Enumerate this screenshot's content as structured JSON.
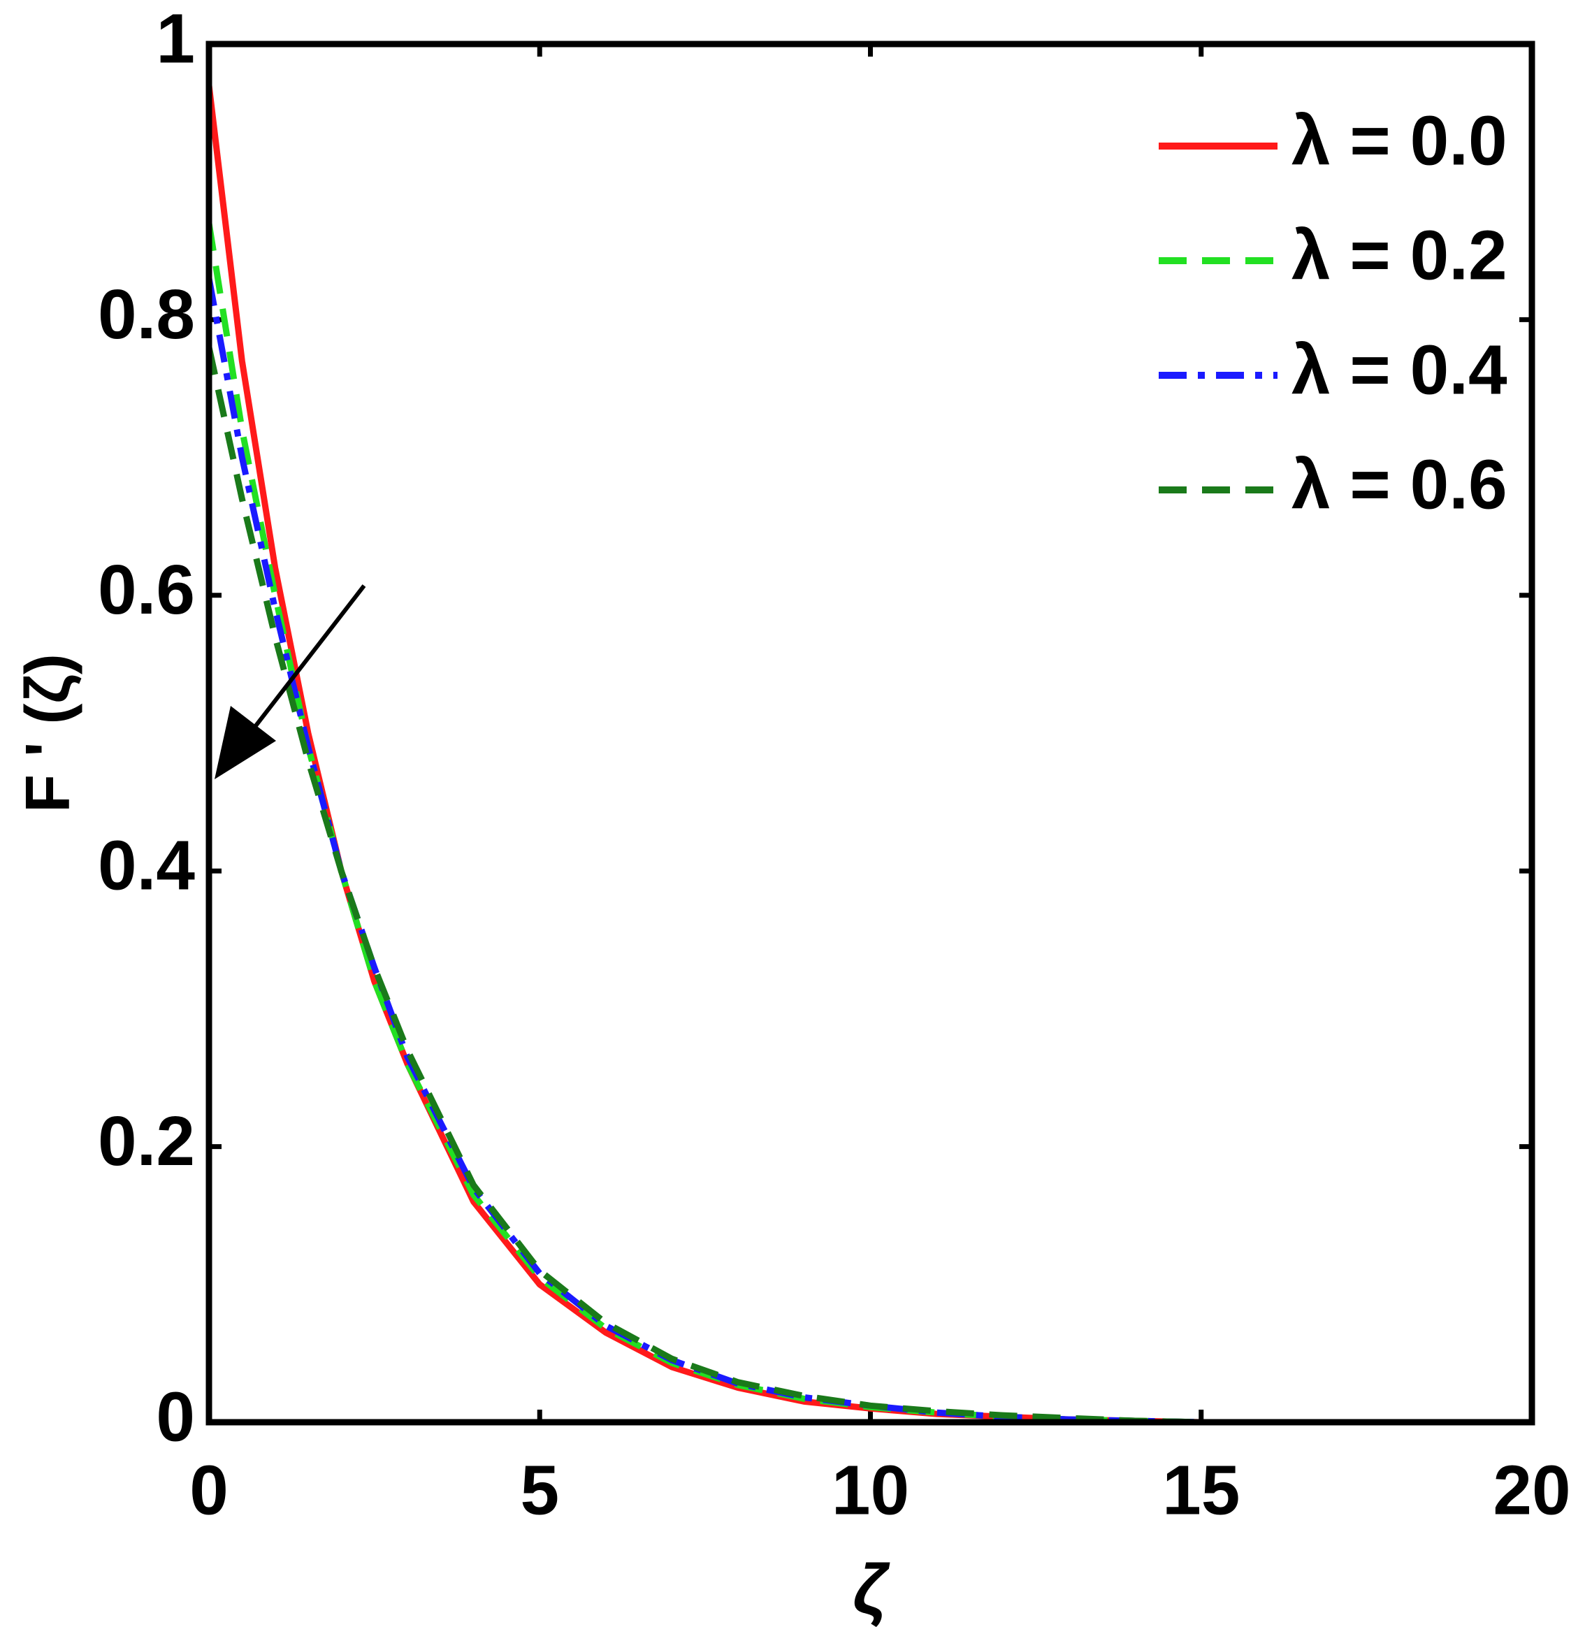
{
  "chart_data": {
    "type": "line",
    "x_label": "ζ",
    "y_label": "F ' (ζ)",
    "x": [
      0,
      0.5,
      1,
      1.5,
      2,
      2.5,
      3,
      4,
      5,
      6,
      7,
      8,
      9,
      10,
      11,
      12,
      13,
      14,
      15,
      16,
      17,
      18,
      19,
      20
    ],
    "series": [
      {
        "name": "λ = 0.0",
        "color": "#ff1a1a",
        "linestyle": "solid",
        "values": [
          0.97,
          0.77,
          0.62,
          0.5,
          0.4,
          0.32,
          0.26,
          0.16,
          0.1,
          0.065,
          0.04,
          0.025,
          0.015,
          0.01,
          0.006,
          0.004,
          0.002,
          0.001,
          0,
          0,
          0,
          0,
          0,
          0
        ]
      },
      {
        "name": "λ = 0.2",
        "color": "#22e022",
        "linestyle": "dashed",
        "values": [
          0.87,
          0.72,
          0.6,
          0.49,
          0.4,
          0.32,
          0.26,
          0.165,
          0.105,
          0.068,
          0.043,
          0.027,
          0.017,
          0.011,
          0.007,
          0.004,
          0.002,
          0.001,
          0,
          0,
          0,
          0,
          0,
          0
        ]
      },
      {
        "name": "λ = 0.4",
        "color": "#1a1aff",
        "linestyle": "dashdot",
        "values": [
          0.83,
          0.7,
          0.59,
          0.49,
          0.4,
          0.33,
          0.265,
          0.17,
          0.108,
          0.07,
          0.045,
          0.028,
          0.018,
          0.012,
          0.007,
          0.004,
          0.002,
          0.001,
          0,
          0,
          0,
          0,
          0,
          0
        ]
      },
      {
        "name": "λ = 0.6",
        "color": "#1a7a1a",
        "linestyle": "dashed",
        "values": [
          0.78,
          0.67,
          0.57,
          0.48,
          0.4,
          0.33,
          0.27,
          0.172,
          0.11,
          0.072,
          0.046,
          0.029,
          0.019,
          0.012,
          0.008,
          0.005,
          0.003,
          0.001,
          0,
          0,
          0,
          0,
          0,
          0
        ]
      }
    ],
    "xlim": [
      0,
      20
    ],
    "ylim": [
      0,
      1
    ],
    "xticks": [
      0,
      5,
      10,
      15,
      20
    ],
    "yticks": [
      0,
      0.2,
      0.4,
      0.6,
      0.8,
      1
    ],
    "grid": false,
    "legend": "upper right"
  }
}
